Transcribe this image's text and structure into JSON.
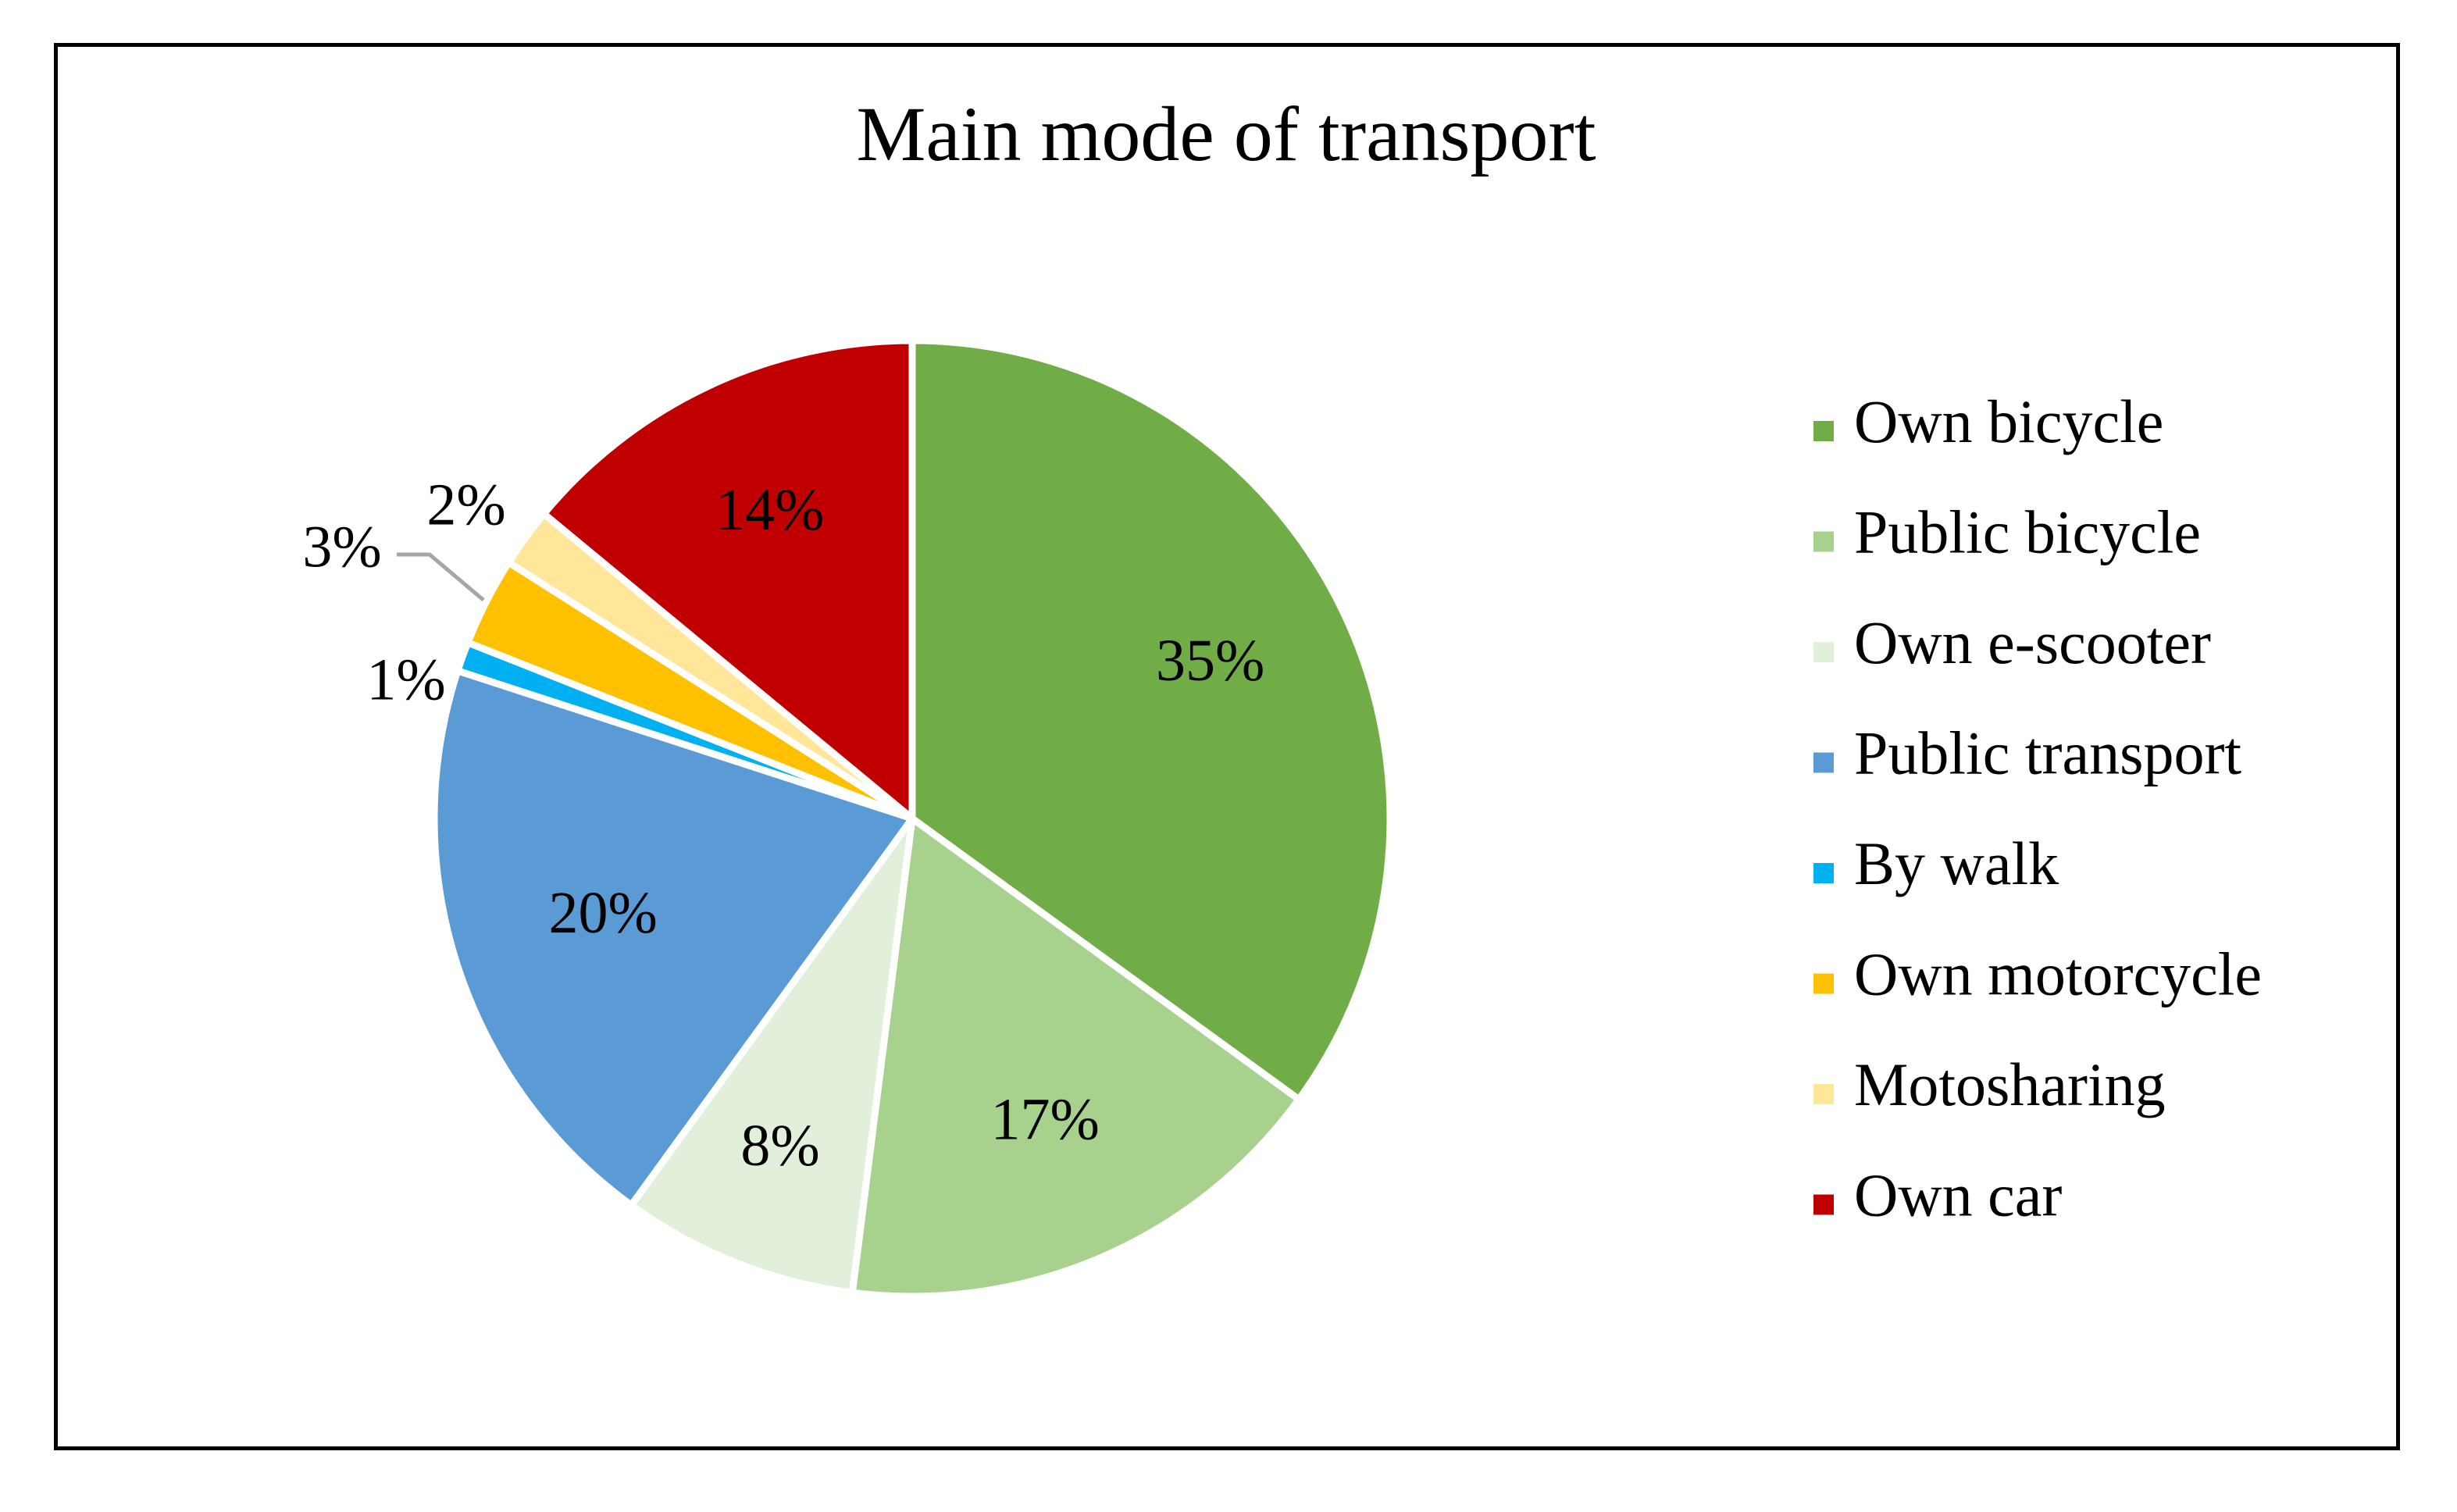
{
  "chart_data": {
    "type": "pie",
    "title": "Main mode of transport",
    "legend_position": "right",
    "slices": [
      {
        "label": "Own bicycle",
        "value": 35,
        "display": "35%",
        "color": "#70AD47"
      },
      {
        "label": "Public bicycle",
        "value": 17,
        "display": "17%",
        "color": "#A9D18E"
      },
      {
        "label": "Own e-scooter",
        "value": 8,
        "display": "8%",
        "color": "#E2EFDA"
      },
      {
        "label": "Public transport",
        "value": 20,
        "display": "20%",
        "color": "#5B9BD5"
      },
      {
        "label": "By walk",
        "value": 1,
        "display": "1%",
        "color": "#00B0F0"
      },
      {
        "label": "Own motorcycle",
        "value": 3,
        "display": "3%",
        "color": "#FFC000"
      },
      {
        "label": "Motosharing",
        "value": 2,
        "display": "2%",
        "color": "#FFE699"
      },
      {
        "label": "Own car",
        "value": 14,
        "display": "14%",
        "color": "#C00000"
      }
    ]
  }
}
